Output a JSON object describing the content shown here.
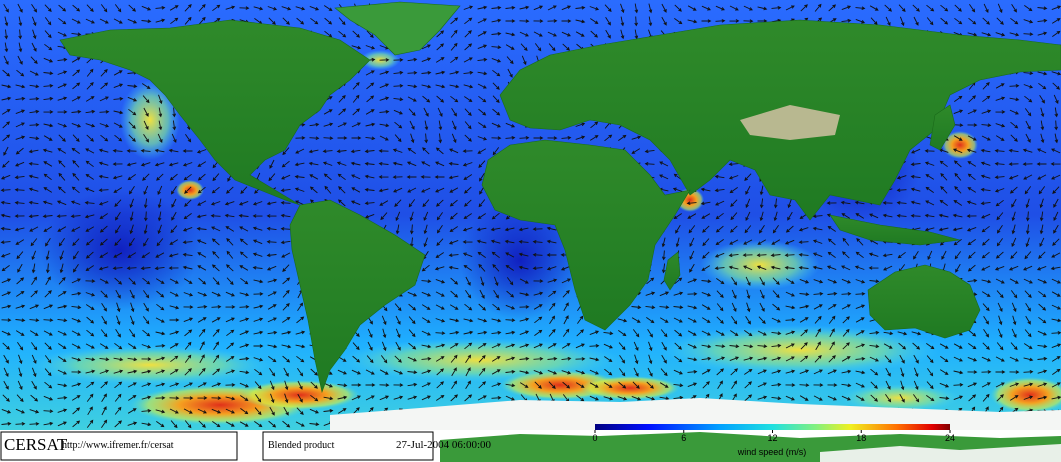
{
  "footer": {
    "logo": "CERSAT",
    "url": "http://www.ifremer.fr/cersat",
    "product": "Blended product",
    "datetime": "27-Jul-2004 06:00:00"
  },
  "colorbar": {
    "label": "wind speed (m/s)",
    "range": [
      0,
      24
    ],
    "ticks": [
      0,
      6,
      12,
      18,
      24
    ]
  }
}
